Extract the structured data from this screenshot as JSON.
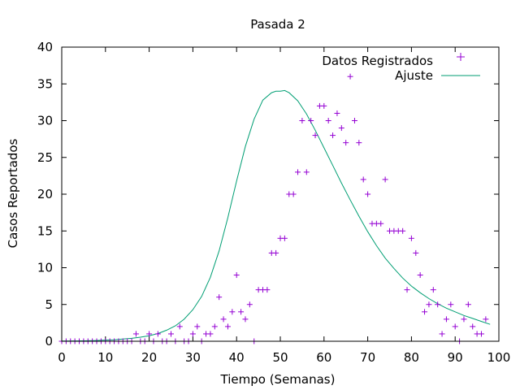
{
  "chart_data": {
    "type": "scatter",
    "title": "Pasada 2",
    "xlabel": "Tiempo (Semanas)",
    "ylabel": "Casos Reportados",
    "xlim": [
      0,
      100
    ],
    "ylim": [
      0,
      40
    ],
    "xticks": [
      0,
      10,
      20,
      30,
      40,
      50,
      60,
      70,
      80,
      90,
      100
    ],
    "yticks": [
      0,
      5,
      10,
      15,
      20,
      25,
      30,
      35,
      40
    ],
    "grid": false,
    "legend_position": "top-right",
    "series": [
      {
        "name": "Datos Registrados",
        "kind": "points",
        "marker": "plus",
        "color": "#9400d3",
        "x": [
          0,
          1,
          2,
          3,
          4,
          5,
          6,
          7,
          8,
          9,
          10,
          11,
          12,
          13,
          14,
          15,
          16,
          17,
          18,
          19,
          20,
          21,
          22,
          23,
          24,
          25,
          26,
          27,
          28,
          29,
          30,
          31,
          32,
          33,
          34,
          35,
          36,
          37,
          38,
          39,
          40,
          41,
          42,
          43,
          44,
          45,
          46,
          47,
          48,
          49,
          50,
          51,
          52,
          53,
          54,
          55,
          56,
          57,
          58,
          59,
          60,
          61,
          62,
          63,
          64,
          65,
          66,
          67,
          68,
          69,
          70,
          71,
          72,
          73,
          74,
          75,
          76,
          77,
          78,
          79,
          80,
          81,
          82,
          83,
          84,
          85,
          86,
          87,
          88,
          89,
          90,
          91,
          92,
          93,
          94,
          95,
          96,
          97
        ],
        "y": [
          0,
          0,
          0,
          0,
          0,
          0,
          0,
          0,
          0,
          0,
          0,
          0,
          0,
          0,
          0,
          0,
          0,
          1,
          0,
          0,
          1,
          0,
          1,
          0,
          0,
          1,
          0,
          2,
          0,
          0,
          1,
          2,
          0,
          1,
          1,
          2,
          6,
          3,
          2,
          4,
          9,
          4,
          3,
          5,
          0,
          7,
          7,
          7,
          12,
          12,
          14,
          14,
          20,
          20,
          23,
          30,
          23,
          30,
          28,
          32,
          32,
          30,
          28,
          31,
          29,
          27,
          36,
          30,
          27,
          22,
          20,
          16,
          16,
          16,
          22,
          15,
          15,
          15,
          15,
          7,
          14,
          12,
          9,
          4,
          5,
          7,
          5,
          1,
          3,
          5,
          2,
          0,
          3,
          5,
          2,
          1,
          1,
          3
        ]
      },
      {
        "name": "Ajuste",
        "kind": "line",
        "color": "#009e73",
        "x": [
          0,
          5,
          8,
          10,
          12,
          14,
          16,
          18,
          20,
          22,
          24,
          26,
          28,
          30,
          32,
          34,
          36,
          38,
          40,
          42,
          44,
          46,
          48,
          49,
          50,
          51,
          52,
          54,
          56,
          58,
          60,
          62,
          64,
          66,
          68,
          70,
          72,
          74,
          76,
          78,
          80,
          82,
          84,
          86,
          88,
          90,
          92,
          94,
          96,
          98
        ],
        "y": [
          0.02,
          0.05,
          0.1,
          0.15,
          0.2,
          0.3,
          0.4,
          0.55,
          0.75,
          1.05,
          1.5,
          2.1,
          3.0,
          4.3,
          6.1,
          8.7,
          12.3,
          16.8,
          21.8,
          26.5,
          30.2,
          32.8,
          33.8,
          34.0,
          34.0,
          34.1,
          33.8,
          32.7,
          30.9,
          28.7,
          26.3,
          23.9,
          21.5,
          19.2,
          17.0,
          14.9,
          13.0,
          11.3,
          9.9,
          8.6,
          7.5,
          6.6,
          5.8,
          5.1,
          4.5,
          4.0,
          3.5,
          3.1,
          2.7,
          2.3
        ]
      }
    ]
  }
}
